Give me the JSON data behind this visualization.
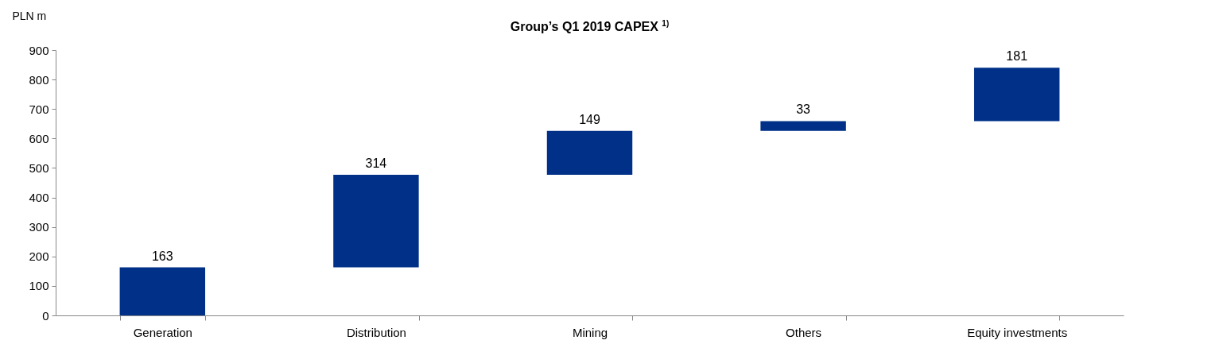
{
  "chart_data": {
    "type": "bar",
    "title": "Group’s Q1 2019 CAPEX $^{1)}$",
    "ylabel": "PLN m",
    "categories": [
      "Generation",
      "Distribution",
      "Mining",
      "Others",
      "Equity investments"
    ],
    "values": [
      163,
      314,
      149,
      33,
      181
    ],
    "base": [
      0,
      163,
      477,
      626,
      659
    ],
    "color": "#003087",
    "ylim": [
      0,
      900
    ],
    "yticks": [
      0,
      100,
      200,
      300,
      400,
      500,
      600,
      700,
      800,
      900
    ],
    "data_labels": true
  }
}
